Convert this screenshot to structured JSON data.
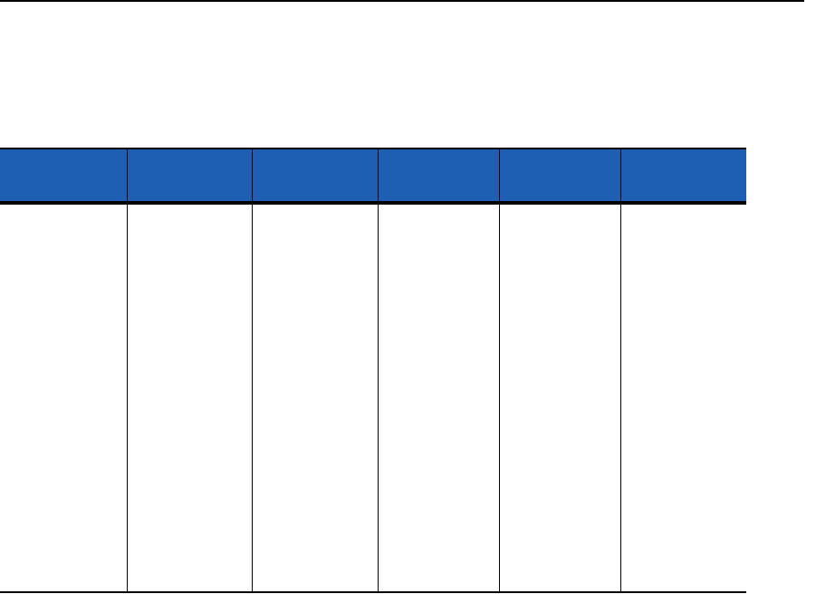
{
  "colors": {
    "header_background": "#1e5fb4",
    "rule": "#000000"
  },
  "table": {
    "columns": [
      "",
      "",
      "",
      "",
      "",
      ""
    ],
    "rows": []
  }
}
